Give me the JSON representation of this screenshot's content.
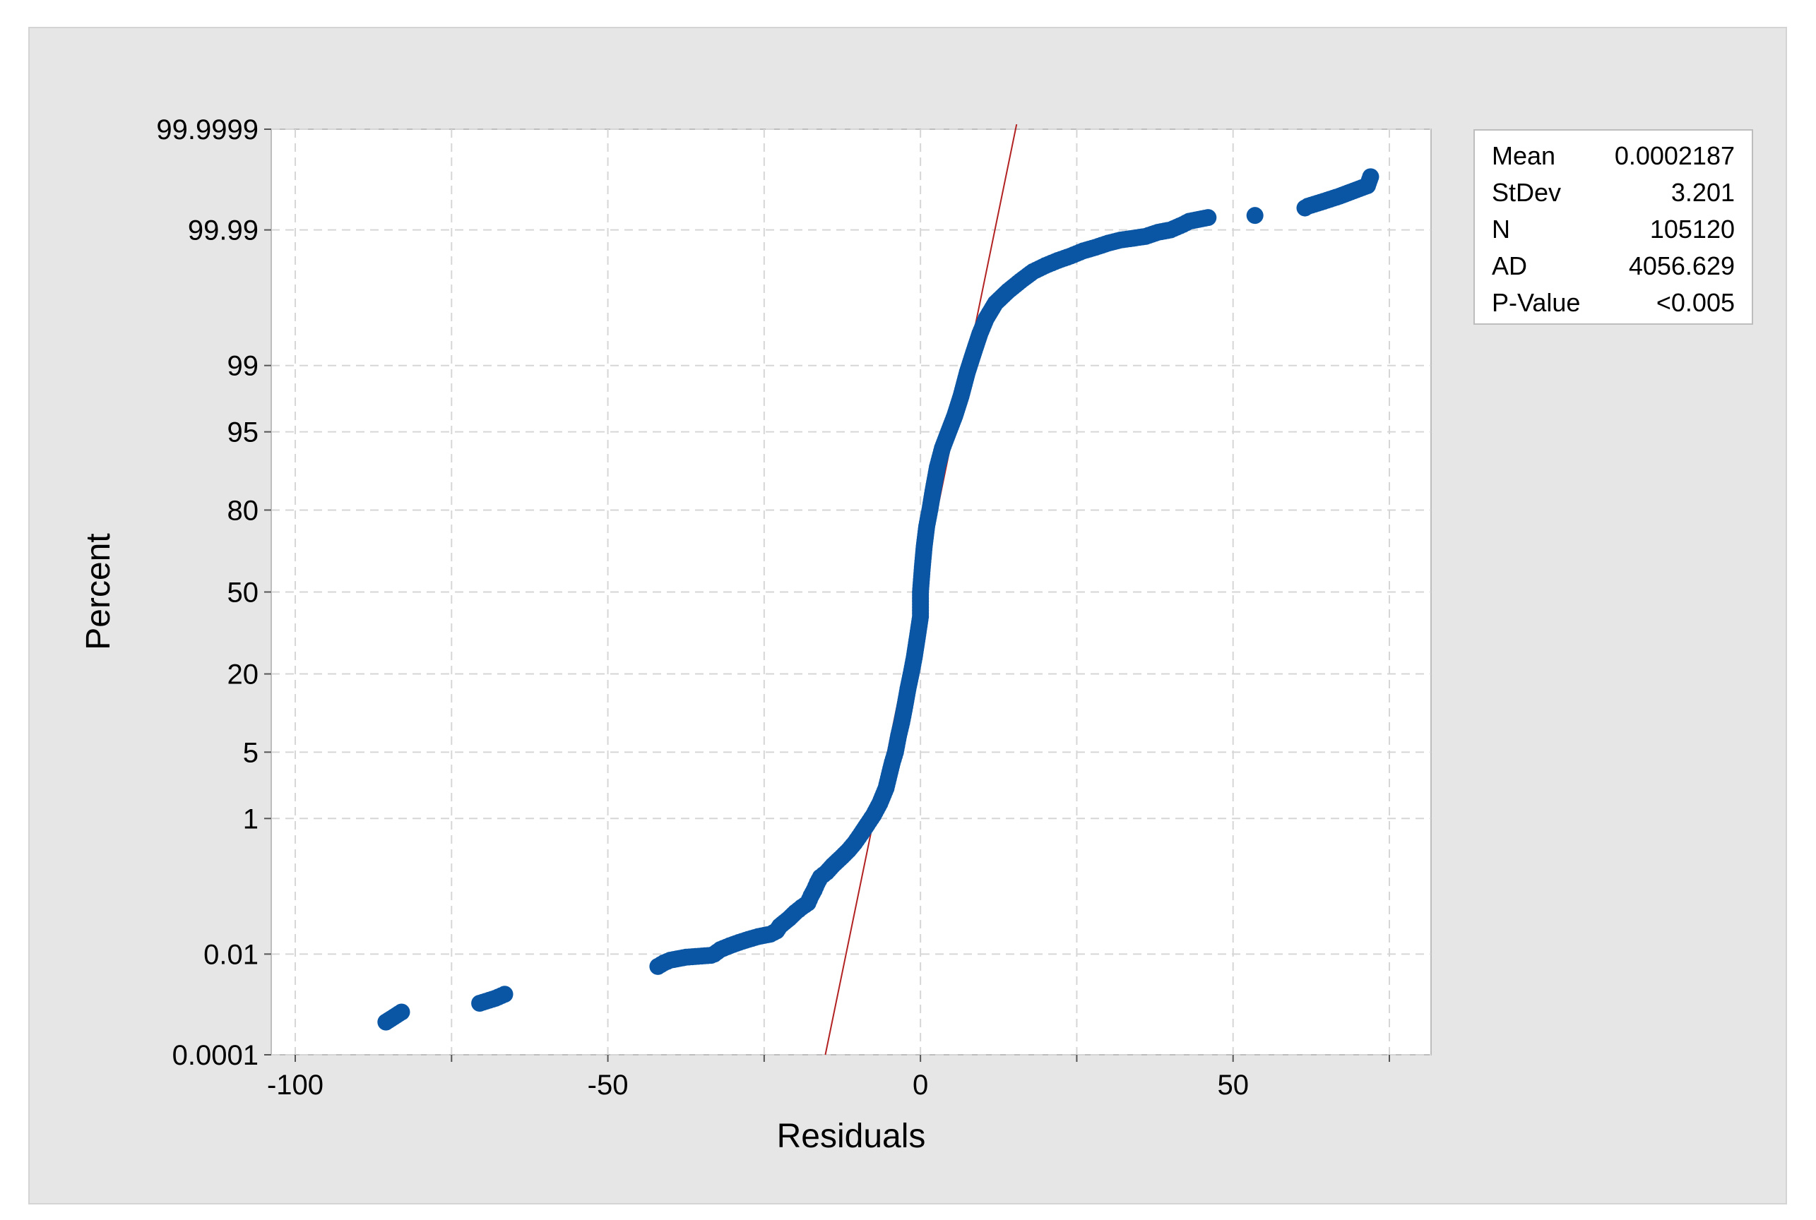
{
  "chart_data": {
    "type": "scatter",
    "subtype": "normal-probability-plot",
    "xlabel": "Residuals",
    "ylabel": "Percent",
    "xlim": [
      -100,
      75
    ],
    "x_ticks": [
      -100,
      -50,
      0,
      50
    ],
    "x_grid": [
      -100,
      -75,
      -50,
      -25,
      0,
      25,
      50,
      75
    ],
    "y_scale": "normal-probability",
    "y_ticks": [
      0.0001,
      0.01,
      1,
      5,
      20,
      50,
      80,
      95,
      99,
      99.99,
      99.9999
    ],
    "y_tick_labels": [
      "0.0001",
      "0.01",
      "1",
      "5",
      "20",
      "50",
      "80",
      "95",
      "99",
      "99.99",
      "99.9999"
    ],
    "grid": true,
    "colors": {
      "points": "#0a56a4",
      "fit_line": "#b22222",
      "panel": "#e6e6e6"
    },
    "fit_line": {
      "mean": 0.0002187,
      "stdev": 3.201
    },
    "series": [
      {
        "points": [
          [
            -85.5,
            0.0005
          ],
          [
            -83.0,
            0.0008
          ],
          [
            -70.5,
            0.0012
          ],
          [
            -68.0,
            0.0015
          ],
          [
            -66.5,
            0.0018
          ],
          [
            -42.0,
            0.006
          ],
          [
            -41.0,
            0.007
          ],
          [
            -40.0,
            0.0078
          ],
          [
            -37.5,
            0.0088
          ],
          [
            -33.5,
            0.0095
          ],
          [
            -33.0,
            0.01
          ],
          [
            -32.0,
            0.012
          ],
          [
            -30.5,
            0.014
          ],
          [
            -29.0,
            0.016
          ],
          [
            -27.5,
            0.018
          ],
          [
            -26.0,
            0.02
          ],
          [
            -25.0,
            0.021
          ],
          [
            -24.0,
            0.022
          ],
          [
            -23.0,
            0.025
          ],
          [
            -22.5,
            0.03
          ],
          [
            -21.0,
            0.04
          ],
          [
            -20.0,
            0.05
          ],
          [
            -19.0,
            0.06
          ],
          [
            -18.0,
            0.07
          ],
          [
            -17.5,
            0.09
          ],
          [
            -17.0,
            0.11
          ],
          [
            -16.5,
            0.14
          ],
          [
            -16.0,
            0.17
          ],
          [
            -15.0,
            0.2
          ],
          [
            -14.0,
            0.25
          ],
          [
            -12.5,
            0.33
          ],
          [
            -11.5,
            0.4
          ],
          [
            -10.5,
            0.5
          ],
          [
            -9.5,
            0.65
          ],
          [
            -8.5,
            0.85
          ],
          [
            -7.5,
            1.1
          ],
          [
            -6.5,
            1.5
          ],
          [
            -5.5,
            2.2
          ],
          [
            -5.0,
            3.0
          ],
          [
            -4.5,
            4.0
          ],
          [
            -4.0,
            5.0
          ],
          [
            -3.5,
            7.0
          ],
          [
            -3.0,
            9.0
          ],
          [
            -2.5,
            12.0
          ],
          [
            -2.0,
            16.0
          ],
          [
            -1.5,
            20.0
          ],
          [
            -1.0,
            25.0
          ],
          [
            -0.5,
            32.0
          ],
          [
            0.0,
            40.0
          ],
          [
            0.0,
            50.0
          ],
          [
            0.3,
            60.0
          ],
          [
            0.6,
            68.0
          ],
          [
            1.0,
            75.0
          ],
          [
            1.5,
            80.0
          ],
          [
            2.0,
            85.0
          ],
          [
            2.7,
            90.0
          ],
          [
            3.5,
            93.0
          ],
          [
            4.5,
            95.0
          ],
          [
            5.5,
            96.5
          ],
          [
            6.5,
            97.8
          ],
          [
            7.5,
            98.8
          ],
          [
            8.5,
            99.3
          ],
          [
            9.5,
            99.6
          ],
          [
            10.5,
            99.75
          ],
          [
            12.0,
            99.85
          ],
          [
            14.0,
            99.9
          ],
          [
            16.0,
            99.93
          ],
          [
            18.0,
            99.95
          ],
          [
            20.0,
            99.96
          ],
          [
            22.0,
            99.967
          ],
          [
            24.0,
            99.972
          ],
          [
            26.0,
            99.977
          ],
          [
            28.0,
            99.98
          ],
          [
            30.0,
            99.983
          ],
          [
            32.0,
            99.985
          ],
          [
            34.0,
            99.986
          ],
          [
            36.0,
            99.987
          ],
          [
            38.0,
            99.989
          ],
          [
            40.0,
            99.99
          ],
          [
            42.0,
            99.992
          ],
          [
            43.0,
            99.993
          ],
          [
            46.0,
            99.994
          ],
          [
            53.5,
            99.9945
          ],
          [
            61.5,
            99.996
          ],
          [
            62.0,
            99.9963
          ],
          [
            64.5,
            99.997
          ],
          [
            67.0,
            99.9976
          ],
          [
            71.5,
            99.9985
          ],
          [
            72.0,
            99.999
          ]
        ]
      }
    ]
  },
  "stats": [
    {
      "label": "Mean",
      "value": "0.0002187"
    },
    {
      "label": "StDev",
      "value": "3.201"
    },
    {
      "label": "N",
      "value": "105120"
    },
    {
      "label": "AD",
      "value": "4056.629"
    },
    {
      "label": "P-Value",
      "value": "<0.005"
    }
  ]
}
